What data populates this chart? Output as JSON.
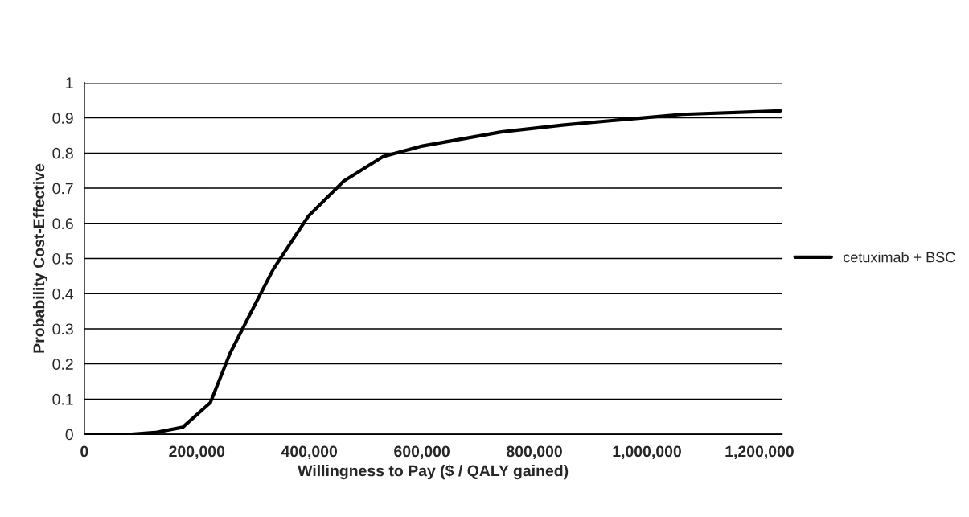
{
  "chart_data": {
    "type": "line",
    "xlabel": "Willingness to Pay ($ / QALY gained)",
    "ylabel": "Probability Cost-Effective",
    "series": [
      {
        "name": "cetuximab + BSC",
        "color": "#000000",
        "x": [
          0,
          84000,
          126000,
          175000,
          224000,
          259000,
          294000,
          336000,
          398000,
          461000,
          531000,
          601000,
          671000,
          741000,
          853000,
          993000,
          1062000,
          1237000
        ],
        "values": [
          0.0,
          0.0,
          0.005,
          0.02,
          0.09,
          0.23,
          0.34,
          0.47,
          0.62,
          0.72,
          0.79,
          0.82,
          0.84,
          0.86,
          0.88,
          0.9,
          0.91,
          0.92
        ]
      }
    ],
    "xlim": [
      0,
      1240000
    ],
    "xticks": [
      {
        "value": 0,
        "label": "0"
      },
      {
        "value": 200000,
        "label": "200,000"
      },
      {
        "value": 400000,
        "label": "400,000"
      },
      {
        "value": 600000,
        "label": "600,000"
      },
      {
        "value": 800000,
        "label": "800,000"
      },
      {
        "value": 1000000,
        "label": "1,000,000"
      },
      {
        "value": 1200000,
        "label": "1,200,000"
      }
    ],
    "ylim": [
      0,
      1
    ],
    "yticks": [
      0,
      0.1,
      0.2,
      0.3,
      0.4,
      0.5,
      0.6,
      0.7,
      0.8,
      0.9,
      1
    ],
    "grid": "y",
    "legend": "right",
    "marker": "none",
    "line_style": "solid"
  }
}
